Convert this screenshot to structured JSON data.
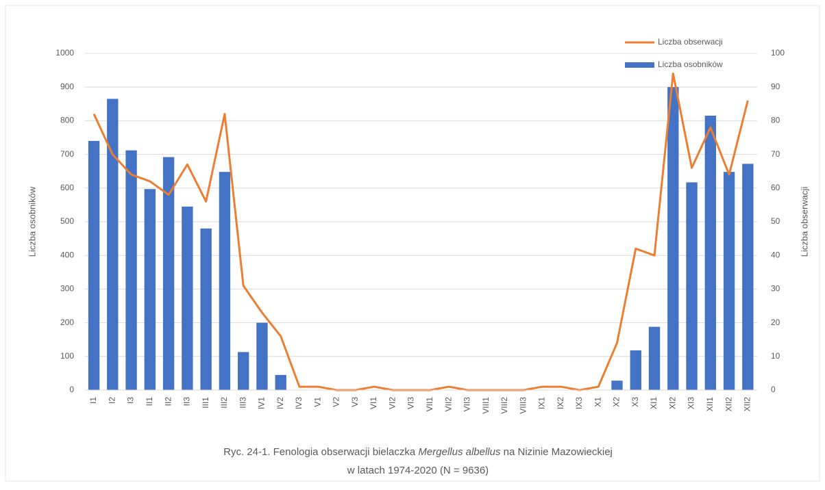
{
  "chart_data": {
    "type": "bar_line",
    "caption": [
      "Ryc. 24-1. Fenologia obserwacji bielaczka ",
      "Mergellus albellus",
      " na Nizinie Mazowieckiej",
      "w latach 1974-2020  (N = 9636)"
    ],
    "ylabel": "Liczba osobników",
    "y2label": "Liczba obserwacji",
    "categories": [
      "I1",
      "I2",
      "I3",
      "II1",
      "II2",
      "II3",
      "III1",
      "III2",
      "III3",
      "IV1",
      "IV2",
      "IV3",
      "V1",
      "V2",
      "V3",
      "VI1",
      "VI2",
      "VI3",
      "VII1",
      "VII2",
      "VII3",
      "VIII1",
      "VIII2",
      "VIII3",
      "IX1",
      "IX2",
      "IX3",
      "X1",
      "X2",
      "X3",
      "XI1",
      "XI2",
      "XI3",
      "XII1",
      "XII2",
      "XII2"
    ],
    "series": [
      {
        "name": "Liczba obserwacji",
        "type": "line",
        "axis": "y2",
        "color": "#ed7d31",
        "values": [
          82,
          70,
          64,
          62,
          58,
          67,
          56,
          82,
          31,
          23,
          16,
          1,
          1,
          0,
          0,
          1,
          0,
          0,
          0,
          1,
          0,
          0,
          0,
          0,
          1,
          1,
          0,
          1,
          14,
          42,
          40,
          94,
          66,
          78,
          64,
          86
        ]
      },
      {
        "name": "Liczba osobników",
        "type": "bar",
        "axis": "y",
        "color": "#4472c4",
        "values": [
          740,
          865,
          712,
          597,
          692,
          545,
          480,
          648,
          113,
          200,
          45,
          0,
          0,
          0,
          0,
          0,
          0,
          0,
          0,
          0,
          0,
          0,
          0,
          0,
          0,
          0,
          0,
          0,
          28,
          118,
          188,
          900,
          617,
          815,
          648,
          672
        ]
      }
    ],
    "ylim": [
      0,
      1000
    ],
    "yticks": [
      0,
      100,
      200,
      300,
      400,
      500,
      600,
      700,
      800,
      900,
      1000
    ],
    "y2lim": [
      0,
      100
    ],
    "y2ticks": [
      0,
      10,
      20,
      30,
      40,
      50,
      60,
      70,
      80,
      90,
      100
    ],
    "grid": true,
    "legend": "top-right"
  }
}
